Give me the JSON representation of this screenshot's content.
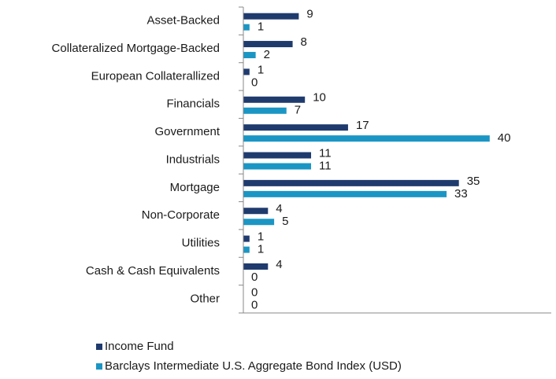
{
  "chart_data": {
    "type": "hbar",
    "categories": [
      "Asset-Backed",
      "Collateralized Mortgage-Backed",
      "European Collaterallized",
      "Financials",
      "Government",
      "Industrials",
      "Mortgage",
      "Non-Corporate",
      "Utilities",
      "Cash & Cash Equivalents",
      "Other"
    ],
    "series": [
      {
        "name": "Income Fund",
        "color": "#1f3b6e",
        "values": [
          9,
          8,
          1,
          10,
          17,
          11,
          35,
          4,
          1,
          4,
          0
        ]
      },
      {
        "name": "Barclays Intermediate U.S. Aggregate Bond Index (USD)",
        "color": "#1b96c4",
        "values": [
          1,
          2,
          0,
          7,
          40,
          11,
          33,
          5,
          1,
          0,
          0
        ]
      }
    ],
    "xlim": [
      0,
      50
    ],
    "legend": "bottom"
  }
}
